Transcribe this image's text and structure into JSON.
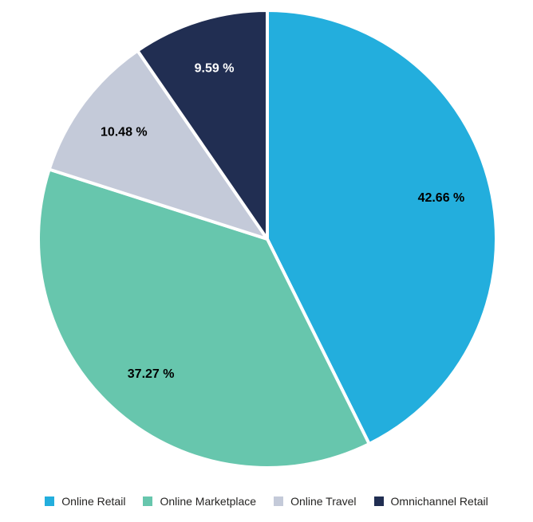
{
  "chart_data": {
    "type": "pie",
    "categories": [
      "Online Retail",
      "Online Marketplace",
      "Online Travel",
      "Omnichannel Retail"
    ],
    "values": [
      42.66,
      37.27,
      10.48,
      9.59
    ],
    "data_labels": [
      "42.66 %",
      "37.27 %",
      "10.48 %",
      "9.59 %"
    ],
    "colors": [
      "#23AEDD",
      "#67C6AD",
      "#C4CAD9",
      "#212E52"
    ],
    "label_colors": [
      "#000000",
      "#000000",
      "#000000",
      "#ffffff"
    ],
    "start_angle_deg": 0,
    "direction": "clockwise",
    "legend_position": "bottom-center",
    "title": ""
  },
  "legend": {
    "items": [
      {
        "label": "Online Retail",
        "color": "#23AEDD"
      },
      {
        "label": "Online Marketplace",
        "color": "#67C6AD"
      },
      {
        "label": "Online Travel",
        "color": "#C4CAD9"
      },
      {
        "label": "Omnichannel Retail",
        "color": "#212E52"
      }
    ]
  }
}
